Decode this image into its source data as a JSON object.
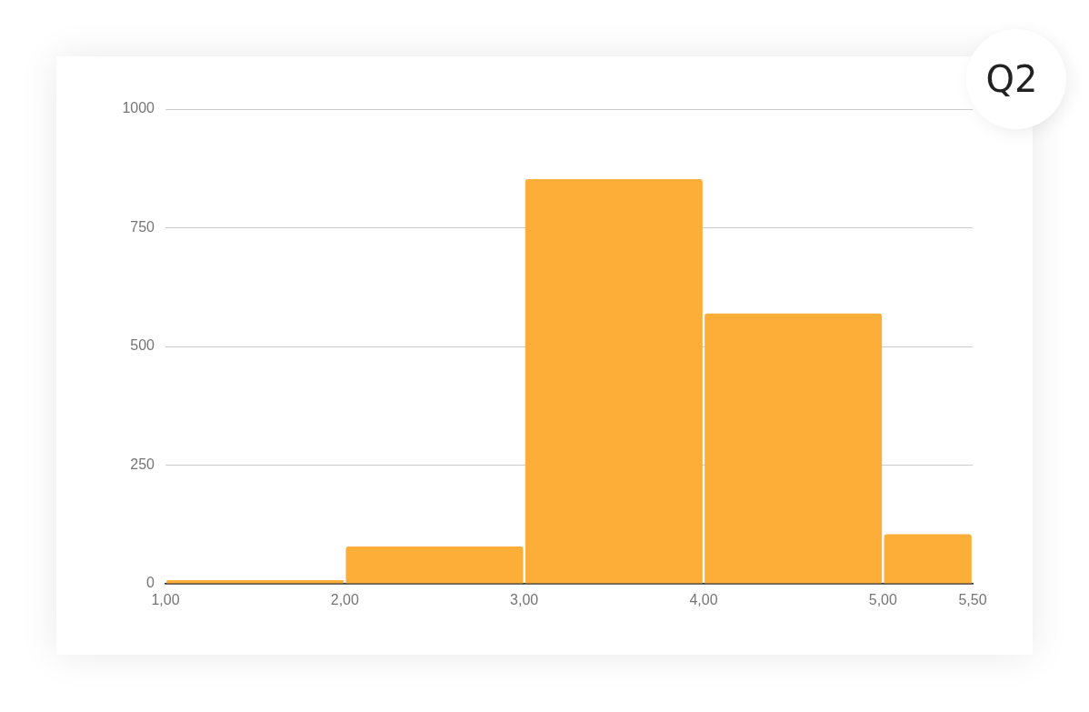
{
  "chart_data": {
    "type": "histogram",
    "title": "Q2",
    "bins": [
      1,
      2,
      3,
      4,
      5,
      5.5
    ],
    "values": [
      7,
      78,
      852,
      569,
      104
    ],
    "color": "#fdae38",
    "xlim": [
      1,
      5.5
    ],
    "xticks": [
      {
        "value": 1,
        "label": "1,00"
      },
      {
        "value": 2,
        "label": "2,00"
      },
      {
        "value": 3,
        "label": "3,00"
      },
      {
        "value": 4,
        "label": "4,00"
      },
      {
        "value": 5,
        "label": "5,00"
      },
      {
        "value": 5.5,
        "label": "5,50"
      }
    ],
    "ylim": [
      0,
      1000
    ],
    "yticks": [
      0,
      250,
      500,
      750,
      1000
    ],
    "grid": "y"
  }
}
